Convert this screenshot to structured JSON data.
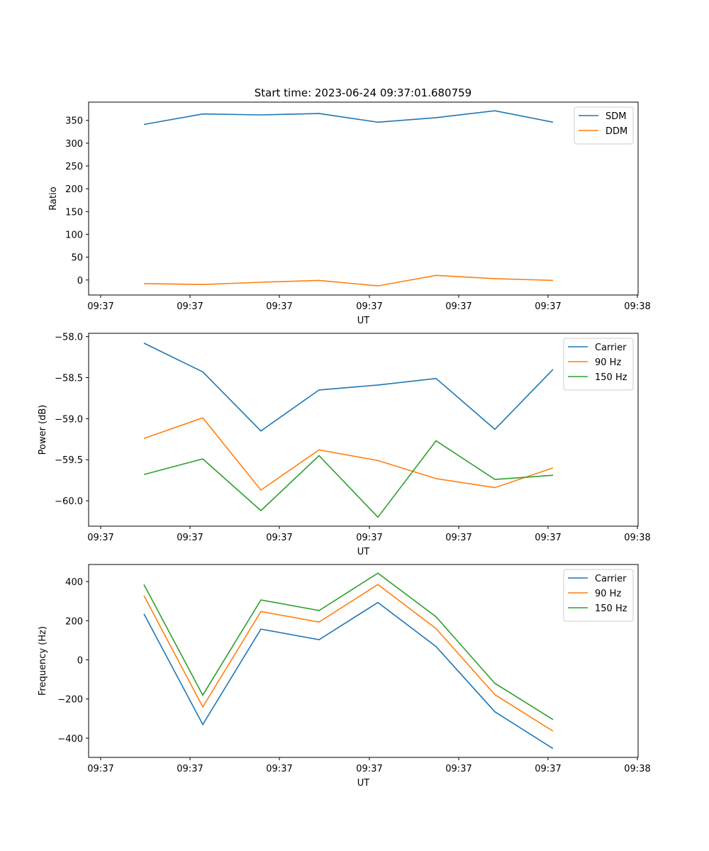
{
  "figure": {
    "title": "Start time: 2023-06-24 09:37:01.680759"
  },
  "chart_data": [
    {
      "type": "line",
      "xlabel": "UT",
      "ylabel": "Ratio",
      "x_tick_labels": [
        "09:37",
        "09:37",
        "09:37",
        "09:37",
        "09:37",
        "09:37",
        "09:38"
      ],
      "y_ticks": [
        0,
        50,
        100,
        150,
        200,
        250,
        300,
        350
      ],
      "ylim": [
        -33,
        390
      ],
      "legend": "top-right",
      "series": [
        {
          "name": "SDM",
          "color": "#1f77b4",
          "values": [
            341,
            364,
            362,
            365,
            346,
            356,
            371,
            346
          ]
        },
        {
          "name": "DDM",
          "color": "#ff7f0e",
          "values": [
            -8,
            -10,
            -5,
            -1,
            -13,
            10,
            3,
            -1
          ]
        }
      ]
    },
    {
      "type": "line",
      "xlabel": "UT",
      "ylabel": "Power (dB)",
      "x_tick_labels": [
        "09:37",
        "09:37",
        "09:37",
        "09:37",
        "09:37",
        "09:37",
        "09:38"
      ],
      "y_ticks": [
        -58.0,
        -58.5,
        -59.0,
        -59.5,
        -60.0
      ],
      "y_decimals": 1,
      "ylim": [
        -60.31,
        -57.96
      ],
      "legend": "top-right",
      "series": [
        {
          "name": "Carrier",
          "color": "#1f77b4",
          "values": [
            -58.08,
            -58.43,
            -59.15,
            -58.65,
            -58.59,
            -58.51,
            -59.13,
            -58.4
          ]
        },
        {
          "name": "90 Hz",
          "color": "#ff7f0e",
          "values": [
            -59.24,
            -58.99,
            -59.87,
            -59.38,
            -59.51,
            -59.73,
            -59.84,
            -59.6
          ]
        },
        {
          "name": "150 Hz",
          "color": "#2ca02c",
          "values": [
            -59.68,
            -59.49,
            -60.12,
            -59.45,
            -60.2,
            -59.27,
            -59.74,
            -59.69
          ]
        }
      ]
    },
    {
      "type": "line",
      "xlabel": "UT",
      "ylabel": "Frequency (Hz)",
      "x_tick_labels": [
        "09:37",
        "09:37",
        "09:37",
        "09:37",
        "09:37",
        "09:37",
        "09:38"
      ],
      "y_ticks": [
        -400,
        -200,
        0,
        200,
        400
      ],
      "ylim": [
        -498,
        487
      ],
      "legend": "top-right",
      "series": [
        {
          "name": "Carrier",
          "color": "#1f77b4",
          "values": [
            235,
            -330,
            157,
            103,
            293,
            68,
            -265,
            -453
          ]
        },
        {
          "name": "90 Hz",
          "color": "#ff7f0e",
          "values": [
            328,
            -240,
            247,
            193,
            385,
            160,
            -178,
            -364
          ]
        },
        {
          "name": "150 Hz",
          "color": "#2ca02c",
          "values": [
            385,
            -180,
            306,
            252,
            443,
            220,
            -120,
            -305
          ]
        }
      ]
    }
  ]
}
